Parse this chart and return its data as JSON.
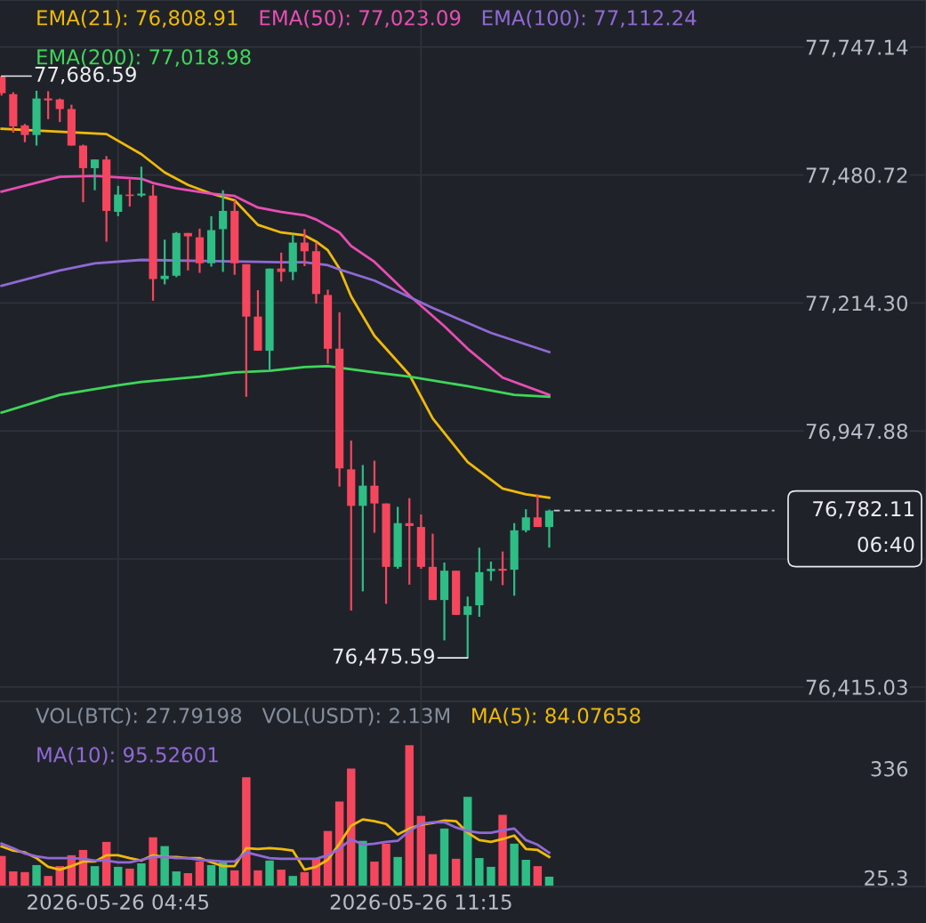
{
  "chart_data": [
    {
      "type": "candlestick",
      "title": null,
      "x": [
        "2026-05-26T02:15",
        "2026-05-26T02:30",
        "2026-05-26T02:45",
        "2026-05-26T03:00",
        "2026-05-26T03:15",
        "2026-05-26T03:30",
        "2026-05-26T03:45",
        "2026-05-26T04:00",
        "2026-05-26T04:15",
        "2026-05-26T04:30",
        "2026-05-26T04:45",
        "2026-05-26T05:00",
        "2026-05-26T05:15",
        "2026-05-26T05:30",
        "2026-05-26T05:45",
        "2026-05-26T06:00",
        "2026-05-26T06:15",
        "2026-05-26T06:30",
        "2026-05-26T06:45",
        "2026-05-26T07:00",
        "2026-05-26T07:15",
        "2026-05-26T07:30",
        "2026-05-26T07:45",
        "2026-05-26T08:00",
        "2026-05-26T08:15",
        "2026-05-26T08:30",
        "2026-05-26T08:45",
        "2026-05-26T09:00",
        "2026-05-26T09:15",
        "2026-05-26T09:30",
        "2026-05-26T09:45",
        "2026-05-26T10:00",
        "2026-05-26T10:15",
        "2026-05-26T10:30",
        "2026-05-26T10:45",
        "2026-05-26T11:00",
        "2026-05-26T11:15",
        "2026-05-26T11:30",
        "2026-05-26T11:45",
        "2026-05-26T12:00",
        "2026-05-26T12:15",
        "2026-05-26T12:30",
        "2026-05-26T12:45",
        "2026-05-26T13:00",
        "2026-05-26T13:15",
        "2026-05-26T13:30",
        "2026-05-26T13:45",
        "2026-05-26T14:00"
      ],
      "ohlc": [
        [
          77685,
          77686.59,
          77646,
          77651
        ],
        [
          77649,
          77653,
          77569,
          77582
        ],
        [
          77584,
          77587,
          77549,
          77564
        ],
        [
          77564,
          77656,
          77542,
          77640
        ],
        [
          77640,
          77655,
          77597,
          77636
        ],
        [
          77638,
          77640,
          77591,
          77618
        ],
        [
          77618,
          77627,
          77542,
          77542
        ],
        [
          77542,
          77544,
          77424,
          77495
        ],
        [
          77495,
          77513,
          77449,
          77513
        ],
        [
          77513,
          77520,
          77342,
          77406
        ],
        [
          77404,
          77458,
          77395,
          77440
        ],
        [
          77440,
          77471,
          77415,
          77437
        ],
        [
          77438,
          77498,
          77435,
          77442
        ],
        [
          77438,
          77460,
          77219,
          77264
        ],
        [
          77264,
          77346,
          77253,
          77271
        ],
        [
          77271,
          77362,
          77268,
          77360
        ],
        [
          77360,
          77360,
          77282,
          77353
        ],
        [
          77351,
          77369,
          77277,
          77297
        ],
        [
          77297,
          77395,
          77290,
          77366
        ],
        [
          77368,
          77449,
          77279,
          77406
        ],
        [
          77406,
          77428,
          77273,
          77297
        ],
        [
          77295,
          77295,
          77019,
          77186
        ],
        [
          77186,
          77241,
          77115,
          77115
        ],
        [
          77115,
          77286,
          77073,
          77286
        ],
        [
          77286,
          77319,
          77259,
          77279
        ],
        [
          77279,
          77357,
          77262,
          77340
        ],
        [
          77340,
          77368,
          77291,
          77322
        ],
        [
          77322,
          77340,
          77213,
          77233
        ],
        [
          77231,
          77242,
          77088,
          77119
        ],
        [
          77119,
          77195,
          76832,
          76870
        ],
        [
          76868,
          76928,
          76574,
          76792
        ],
        [
          76792,
          76877,
          76614,
          76834
        ],
        [
          76834,
          76886,
          76736,
          76797
        ],
        [
          76797,
          76797,
          76588,
          76665
        ],
        [
          76665,
          76790,
          76661,
          76756
        ],
        [
          76756,
          76808,
          76628,
          76750
        ],
        [
          76748,
          76774,
          76661,
          76665
        ],
        [
          76665,
          76734,
          76596,
          76596
        ],
        [
          76596,
          76674,
          76512,
          76657
        ],
        [
          76657,
          76657,
          76565,
          76565
        ],
        [
          76565,
          76603,
          76475.59,
          76583
        ],
        [
          76585,
          76705,
          76561,
          76654
        ],
        [
          76656,
          76676,
          76636,
          76661
        ],
        [
          76661,
          76697,
          76627,
          76657
        ],
        [
          76659,
          76756,
          76605,
          76741
        ],
        [
          76741,
          76785,
          76737,
          76768
        ],
        [
          76768,
          76816,
          76748,
          76748
        ],
        [
          76748,
          76784,
          76705,
          76782.11
        ]
      ],
      "colors": [
        "#f6465d",
        "#f6465d",
        "#f6465d",
        "#2ebd85",
        "#f6465d",
        "#f6465d",
        "#f6465d",
        "#f6465d",
        "#2ebd85",
        "#f6465d",
        "#2ebd85",
        "#f6465d",
        "#2ebd85",
        "#f6465d",
        "#2ebd85",
        "#2ebd85",
        "#f6465d",
        "#f6465d",
        "#2ebd85",
        "#2ebd85",
        "#f6465d",
        "#f6465d",
        "#f6465d",
        "#2ebd85",
        "#f6465d",
        "#2ebd85",
        "#f6465d",
        "#f6465d",
        "#f6465d",
        "#f6465d",
        "#f6465d",
        "#2ebd85",
        "#f6465d",
        "#f6465d",
        "#2ebd85",
        "#f6465d",
        "#f6465d",
        "#f6465d",
        "#2ebd85",
        "#f6465d",
        "#2ebd85",
        "#2ebd85",
        "#2ebd85",
        "#f6465d",
        "#2ebd85",
        "#2ebd85",
        "#f6465d",
        "#2ebd85"
      ],
      "series": [
        {
          "type": "line",
          "name": "EMA(21): 76,808.91",
          "color": "#f0b90b",
          "x": [
            "2026-05-26T02:15",
            "2026-05-26T04:30",
            "2026-05-26T05:15",
            "2026-05-26T05:45",
            "2026-05-26T06:15",
            "2026-05-26T06:45",
            "2026-05-26T07:15",
            "2026-05-26T07:45",
            "2026-05-26T08:15",
            "2026-05-26T08:45",
            "2026-05-26T09:00",
            "2026-05-26T09:15",
            "2026-05-26T09:30",
            "2026-05-26T09:45",
            "2026-05-26T10:15",
            "2026-05-26T11:00",
            "2026-05-26T11:30",
            "2026-05-26T12:15",
            "2026-05-26T13:00",
            "2026-05-26T13:30",
            "2026-05-26T14:00"
          ],
          "values": [
            77577,
            77566,
            77524,
            77486,
            77460,
            77442,
            77428,
            77377,
            77361,
            77355,
            77342,
            77324,
            77286,
            77228,
            77146,
            77065,
            76974,
            76883,
            76828,
            76816,
            76809
          ]
        },
        {
          "type": "line",
          "name": "EMA(50): 77,023.09",
          "color": "#e94db4",
          "x": [
            "2026-05-26T02:15",
            "2026-05-26T03:30",
            "2026-05-26T04:15",
            "2026-05-26T05:15",
            "2026-05-26T05:30",
            "2026-05-26T06:00",
            "2026-05-26T06:45",
            "2026-05-26T07:15",
            "2026-05-26T07:45",
            "2026-05-26T08:15",
            "2026-05-26T08:45",
            "2026-05-26T09:00",
            "2026-05-26T09:30",
            "2026-05-26T09:45",
            "2026-05-26T10:15",
            "2026-05-26T11:00",
            "2026-05-26T11:45",
            "2026-05-26T12:15",
            "2026-05-26T13:00",
            "2026-05-26T14:00"
          ],
          "values": [
            77446,
            77477,
            77479,
            77473,
            77464,
            77453,
            77442,
            77437,
            77413,
            77404,
            77397,
            77388,
            77361,
            77333,
            77300,
            77230,
            77166,
            77119,
            77059,
            77023
          ]
        },
        {
          "type": "line",
          "name": "EMA(100): 77,112.24",
          "color": "#9169d6",
          "x": [
            "2026-05-26T02:15",
            "2026-05-26T03:30",
            "2026-05-26T04:15",
            "2026-05-26T05:15",
            "2026-05-26T07:45",
            "2026-05-26T08:15",
            "2026-05-26T08:45",
            "2026-05-26T09:15",
            "2026-05-26T09:30",
            "2026-05-26T10:15",
            "2026-05-26T11:30",
            "2026-05-26T12:45",
            "2026-05-26T14:00"
          ],
          "values": [
            77250,
            77282,
            77297,
            77304,
            77300,
            77299,
            77299,
            77293,
            77284,
            77261,
            77204,
            77152,
            77112
          ]
        },
        {
          "type": "line",
          "name": "EMA(200): 77,018.98",
          "color": "#3fd65a",
          "x": [
            "2026-05-26T02:15",
            "2026-05-26T03:30",
            "2026-05-26T04:45",
            "2026-05-26T05:15",
            "2026-05-26T06:30",
            "2026-05-26T07:15",
            "2026-05-26T08:00",
            "2026-05-26T08:45",
            "2026-05-26T09:15",
            "2026-05-26T10:15",
            "2026-05-26T11:00",
            "2026-05-26T12:15",
            "2026-05-26T13:15",
            "2026-05-26T14:00"
          ],
          "values": [
            76986,
            77023,
            77043,
            77050,
            77061,
            77070,
            77073,
            77081,
            77083,
            77070,
            77061,
            77041,
            77023,
            77019
          ]
        }
      ],
      "ylim": [
        76385,
        77845
      ],
      "yticks": [
        {
          "value": 76415.03,
          "label": "76,415.03"
        },
        {
          "value": 76681.46,
          "label": null
        },
        {
          "value": 76947.88,
          "label": "76,947.88"
        },
        {
          "value": 77214.3,
          "label": "77,214.30"
        },
        {
          "value": 77480.72,
          "label": "77,480.72"
        },
        {
          "value": 77747.14,
          "label": "77,747.14"
        }
      ],
      "xlim": [
        "2026-05-26T02:13",
        "2026-05-26T22:05"
      ],
      "xticks": [
        {
          "value": "2026-05-26T04:45",
          "label": null
        },
        {
          "value": "2026-05-26T11:15",
          "label": null
        }
      ],
      "tick_labels": "y",
      "grid": true,
      "legend": "top left",
      "ref_lines": [
        {
          "axis": "y",
          "value": 76782.11,
          "label": "76,782.11",
          "line_style": "dashed",
          "color": "#c9ccd1"
        }
      ],
      "annotations": [
        {
          "text": "77,686.59",
          "x": "2026-05-26T02:15",
          "y": 77686.59
        },
        {
          "text": "76,475.59",
          "x": "2026-05-26T12:15",
          "y": 76475.59
        },
        "06:40"
      ]
    },
    {
      "type": "bar",
      "x": [
        "2026-05-26T02:15",
        "2026-05-26T02:30",
        "2026-05-26T02:45",
        "2026-05-26T03:00",
        "2026-05-26T03:15",
        "2026-05-26T03:30",
        "2026-05-26T03:45",
        "2026-05-26T04:00",
        "2026-05-26T04:15",
        "2026-05-26T04:30",
        "2026-05-26T04:45",
        "2026-05-26T05:00",
        "2026-05-26T05:15",
        "2026-05-26T05:30",
        "2026-05-26T05:45",
        "2026-05-26T06:00",
        "2026-05-26T06:15",
        "2026-05-26T06:30",
        "2026-05-26T06:45",
        "2026-05-26T07:00",
        "2026-05-26T07:15",
        "2026-05-26T07:30",
        "2026-05-26T07:45",
        "2026-05-26T08:00",
        "2026-05-26T08:15",
        "2026-05-26T08:30",
        "2026-05-26T08:45",
        "2026-05-26T09:00",
        "2026-05-26T09:15",
        "2026-05-26T09:30",
        "2026-05-26T09:45",
        "2026-05-26T10:00",
        "2026-05-26T10:15",
        "2026-05-26T10:30",
        "2026-05-26T10:45",
        "2026-05-26T11:00",
        "2026-05-26T11:15",
        "2026-05-26T11:30",
        "2026-05-26T11:45",
        "2026-05-26T12:00",
        "2026-05-26T12:15",
        "2026-05-26T12:30",
        "2026-05-26T12:45",
        "2026-05-26T13:00",
        "2026-05-26T13:15",
        "2026-05-26T13:30",
        "2026-05-26T13:45",
        "2026-05-26T14:00"
      ],
      "series": [
        {
          "type": "bar",
          "values": [
            87,
            43,
            41,
            61,
            30,
            58,
            89,
            104,
            58,
            127,
            56,
            51,
            66,
            140,
            115,
            43,
            38,
            71,
            61,
            69,
            46,
            311,
            46,
            74,
            48,
            30,
            41,
            79,
            158,
            242,
            336,
            130,
            71,
            122,
            84,
            402,
            201,
            92,
            165,
            79,
            255,
            81,
            56,
            204,
            122,
            76,
            58,
            28
          ],
          "colors": [
            "#f6465d",
            "#f6465d",
            "#f6465d",
            "#2ebd85",
            "#f6465d",
            "#f6465d",
            "#f6465d",
            "#f6465d",
            "#2ebd85",
            "#f6465d",
            "#2ebd85",
            "#f6465d",
            "#2ebd85",
            "#f6465d",
            "#2ebd85",
            "#2ebd85",
            "#f6465d",
            "#f6465d",
            "#2ebd85",
            "#2ebd85",
            "#f6465d",
            "#f6465d",
            "#f6465d",
            "#2ebd85",
            "#f6465d",
            "#2ebd85",
            "#f6465d",
            "#f6465d",
            "#f6465d",
            "#f6465d",
            "#f6465d",
            "#2ebd85",
            "#f6465d",
            "#f6465d",
            "#2ebd85",
            "#f6465d",
            "#f6465d",
            "#f6465d",
            "#2ebd85",
            "#f6465d",
            "#2ebd85",
            "#2ebd85",
            "#2ebd85",
            "#f6465d",
            "#2ebd85",
            "#2ebd85",
            "#f6465d",
            "#2ebd85"
          ]
        },
        {
          "type": "line",
          "name": "MA(5): 84.07658",
          "color": "#f0b90b",
          "values": [
            114,
            102,
            97,
            81,
            56,
            48,
            58,
            71,
            71,
            89,
            89,
            81,
            74,
            89,
            84,
            84,
            81,
            81,
            69,
            58,
            58,
            109,
            107,
            109,
            107,
            102,
            48,
            56,
            76,
            122,
            173,
            191,
            186,
            178,
            148,
            165,
            176,
            181,
            188,
            186,
            153,
            132,
            127,
            135,
            145,
            107,
            104,
            84
          ]
        },
        {
          "type": "line",
          "name": "MA(10): 95.52601",
          "color": "#9169d6",
          "values": [
            122,
            109,
            94,
            86,
            81,
            81,
            81,
            79,
            74,
            74,
            69,
            69,
            76,
            84,
            84,
            81,
            81,
            76,
            74,
            71,
            71,
            97,
            89,
            81,
            79,
            79,
            79,
            79,
            89,
            107,
            135,
            119,
            122,
            127,
            130,
            158,
            178,
            183,
            183,
            168,
            158,
            153,
            153,
            160,
            165,
            132,
            119,
            96
          ]
        }
      ],
      "ylim": [
        0,
        527
      ],
      "yticks": [
        25.3,
        336
      ],
      "xlim": [
        "2026-05-26T02:13",
        "2026-05-26T22:05"
      ],
      "xticks": [
        {
          "value": "2026-05-26T04:45",
          "label": "2026-05-26 04:45"
        },
        {
          "value": "2026-05-26T11:15",
          "label": "2026-05-26 11:15"
        }
      ],
      "grid": "x",
      "legend": "top left",
      "annotations": [
        "VOL(BTC): 27.79198",
        "VOL(USDT): 2.13M"
      ]
    }
  ]
}
